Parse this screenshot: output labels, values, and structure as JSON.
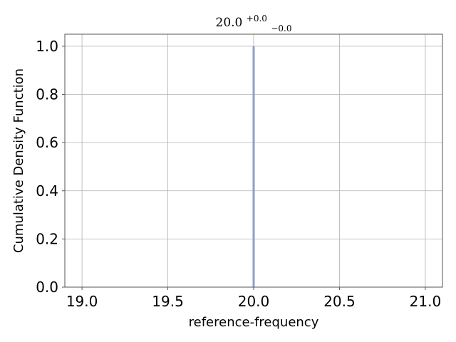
{
  "chart_data": {
    "type": "line",
    "title": {
      "value": "20.0",
      "upper": "+0.0",
      "lower": "−0.0"
    },
    "xlabel": "reference-frequency",
    "ylabel": "Cumulative Density Function",
    "xlim": [
      18.9,
      21.1
    ],
    "ylim": [
      0.0,
      1.05
    ],
    "xticks": [
      19.0,
      19.5,
      20.0,
      20.5,
      21.0
    ],
    "xtick_labels": [
      "19.0",
      "19.5",
      "20.0",
      "20.5",
      "21.0"
    ],
    "yticks": [
      0.0,
      0.2,
      0.4,
      0.6,
      0.8,
      1.0
    ],
    "ytick_labels": [
      "0.0",
      "0.2",
      "0.4",
      "0.6",
      "0.8",
      "1.0"
    ],
    "grid": true,
    "series": [
      {
        "color": "#8c9fcc",
        "x": [
          20.0,
          20.0
        ],
        "y": [
          0.0,
          1.0
        ]
      }
    ]
  }
}
